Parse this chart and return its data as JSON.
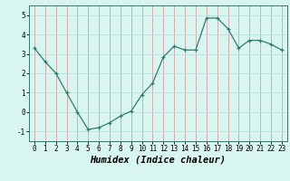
{
  "x": [
    0,
    1,
    2,
    3,
    4,
    5,
    6,
    7,
    8,
    9,
    10,
    11,
    12,
    13,
    14,
    15,
    16,
    17,
    18,
    19,
    20,
    21,
    22,
    23
  ],
  "y": [
    3.3,
    2.6,
    2.0,
    1.0,
    0.0,
    -0.9,
    -0.8,
    -0.55,
    -0.2,
    0.05,
    0.9,
    1.5,
    2.85,
    3.4,
    3.2,
    3.2,
    4.85,
    4.85,
    4.3,
    3.3,
    3.7,
    3.7,
    3.5,
    3.2
  ],
  "xlabel": "Humidex (Indice chaleur)",
  "ylim": [
    -1.5,
    5.5
  ],
  "xlim": [
    -0.5,
    23.5
  ],
  "yticks": [
    -1,
    0,
    1,
    2,
    3,
    4,
    5
  ],
  "xticks": [
    0,
    1,
    2,
    3,
    4,
    5,
    6,
    7,
    8,
    9,
    10,
    11,
    12,
    13,
    14,
    15,
    16,
    17,
    18,
    19,
    20,
    21,
    22,
    23
  ],
  "line_color": "#2d7d6e",
  "marker": "+",
  "bg_color": "#d8f5f0",
  "grid_color": "#b8e0da",
  "grid_major_color": "#c8a0a0",
  "tick_label_fontsize": 5.5,
  "xlabel_fontsize": 7.5
}
